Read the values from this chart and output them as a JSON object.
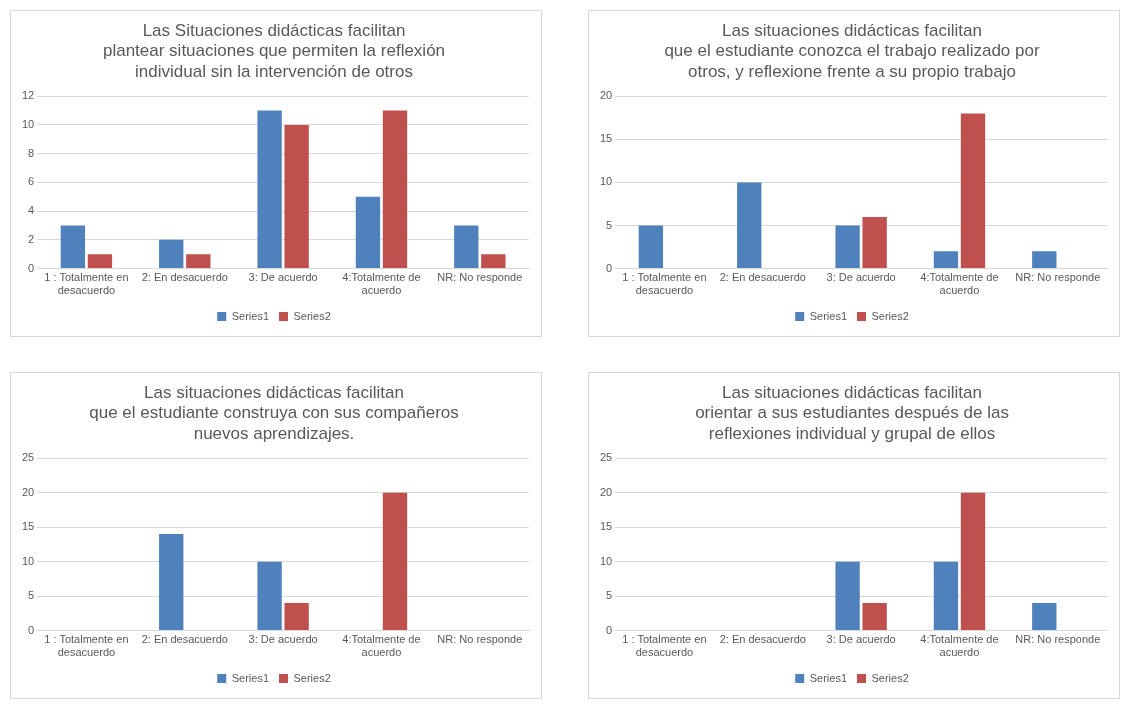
{
  "chart_data": [
    {
      "type": "bar",
      "title": "Las Situaciones didácticas facilitan\nplantear situaciones que permiten la reflexión\nindividual sin la intervención de otros",
      "categories": [
        "1 : Totalmente en desacuerdo",
        "2: En desacuerdo",
        "3: De acuerdo",
        "4:Totalmente de acuerdo",
        "NR: No responde"
      ],
      "series": [
        {
          "name": "Series1",
          "color": "#4f81bd",
          "values": [
            3,
            2,
            11,
            5,
            3
          ]
        },
        {
          "name": "Series2",
          "color": "#c0504d",
          "values": [
            1,
            1,
            10,
            11,
            1
          ]
        }
      ],
      "ylim": [
        0,
        12
      ],
      "yticks": [
        0,
        2,
        4,
        6,
        8,
        10,
        12
      ],
      "grid": "y",
      "legend": "bottom"
    },
    {
      "type": "bar",
      "title": "Las situaciones didácticas facilitan\nque el estudiante conozca el trabajo realizado por\notros, y reflexione frente a su propio trabajo",
      "categories": [
        "1 : Totalmente en desacuerdo",
        "2: En desacuerdo",
        "3: De acuerdo",
        "4:Totalmente de acuerdo",
        "NR: No responde"
      ],
      "series": [
        {
          "name": "Series1",
          "color": "#4f81bd",
          "values": [
            5,
            10,
            5,
            2,
            2
          ]
        },
        {
          "name": "Series2",
          "color": "#c0504d",
          "values": [
            0,
            0,
            6,
            18,
            0
          ]
        }
      ],
      "ylim": [
        0,
        20
      ],
      "yticks": [
        0,
        5,
        10,
        15,
        20
      ],
      "grid": "y",
      "legend": "bottom"
    },
    {
      "type": "bar",
      "title": "Las situaciones didácticas facilitan\nque el estudiante construya con sus compañeros\nnuevos aprendizajes.",
      "categories": [
        "1 : Totalmente en desacuerdo",
        "2: En desacuerdo",
        "3: De acuerdo",
        "4:Totalmente de acuerdo",
        "NR: No responde"
      ],
      "series": [
        {
          "name": "Series1",
          "color": "#4f81bd",
          "values": [
            0,
            14,
            10,
            0,
            0
          ]
        },
        {
          "name": "Series2",
          "color": "#c0504d",
          "values": [
            0,
            0,
            4,
            20,
            0
          ]
        }
      ],
      "ylim": [
        0,
        25
      ],
      "yticks": [
        0,
        5,
        10,
        15,
        20,
        25
      ],
      "grid": "y",
      "legend": "bottom"
    },
    {
      "type": "bar",
      "title": "Las situaciones didácticas facilitan\norientar a sus estudiantes después de las\nreflexiones individual y grupal de ellos",
      "categories": [
        "1 : Totalmente en desacuerdo",
        "2: En desacuerdo",
        "3: De acuerdo",
        "4:Totalmente de acuerdo",
        "NR: No responde"
      ],
      "series": [
        {
          "name": "Series1",
          "color": "#4f81bd",
          "values": [
            0,
            0,
            10,
            10,
            4
          ]
        },
        {
          "name": "Series2",
          "color": "#c0504d",
          "values": [
            0,
            0,
            4,
            20,
            0
          ]
        }
      ],
      "ylim": [
        0,
        25
      ],
      "yticks": [
        0,
        5,
        10,
        15,
        20,
        25
      ],
      "grid": "y",
      "legend": "bottom"
    }
  ]
}
